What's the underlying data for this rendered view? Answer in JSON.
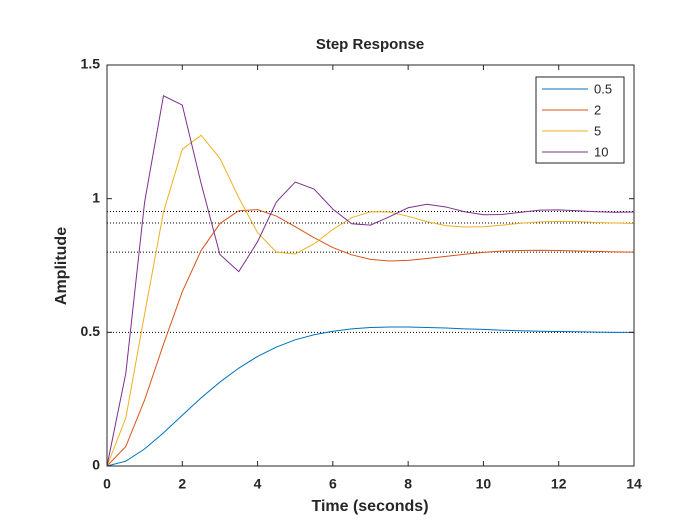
{
  "chart_data": {
    "type": "line",
    "title": "Step Response",
    "xlabel": "Time (seconds)",
    "ylabel": "Amplitude",
    "x": [
      0,
      0.5,
      1,
      1.5,
      2,
      2.5,
      3,
      3.5,
      4,
      4.5,
      5,
      5.5,
      6,
      6.5,
      7,
      7.5,
      8,
      8.5,
      9,
      9.5,
      10,
      10.5,
      11,
      11.5,
      12,
      12.5,
      13,
      13.5,
      14
    ],
    "xlim": [
      0,
      14
    ],
    "xticks": [
      0,
      2,
      4,
      6,
      8,
      10,
      12,
      14
    ],
    "ylim": [
      0,
      1.5
    ],
    "yticks": [
      0,
      0.5,
      1,
      1.5
    ],
    "legend": "upper right",
    "series": [
      {
        "name": "0.5",
        "color": "#0072BD",
        "final_value": 0.5,
        "values": [
          0,
          0.018,
          0.064,
          0.124,
          0.19,
          0.255,
          0.314,
          0.366,
          0.41,
          0.445,
          0.472,
          0.491,
          0.504,
          0.513,
          0.518,
          0.52,
          0.52,
          0.518,
          0.516,
          0.513,
          0.511,
          0.508,
          0.506,
          0.504,
          0.503,
          0.502,
          0.501,
          0.5,
          0.5
        ]
      },
      {
        "name": "2",
        "color": "#D95319",
        "final_value": 0.8,
        "values": [
          0,
          0.073,
          0.247,
          0.455,
          0.652,
          0.806,
          0.907,
          0.955,
          0.959,
          0.935,
          0.895,
          0.854,
          0.817,
          0.79,
          0.773,
          0.767,
          0.769,
          0.776,
          0.784,
          0.792,
          0.799,
          0.804,
          0.806,
          0.807,
          0.806,
          0.804,
          0.803,
          0.801,
          0.8
        ]
      },
      {
        "name": "5",
        "color": "#EDB120",
        "final_value": 0.909,
        "values": [
          0,
          0.18,
          0.569,
          0.95,
          1.185,
          1.237,
          1.151,
          1.004,
          0.873,
          0.8,
          0.793,
          0.831,
          0.885,
          0.929,
          0.951,
          0.95,
          0.934,
          0.914,
          0.899,
          0.894,
          0.895,
          0.901,
          0.908,
          0.913,
          0.915,
          0.914,
          0.911,
          0.909,
          0.907
        ]
      },
      {
        "name": "10",
        "color": "#7E2F8E",
        "final_value": 0.952,
        "values": [
          0,
          0.347,
          0.988,
          1.385,
          1.35,
          1.057,
          0.791,
          0.727,
          0.839,
          0.988,
          1.062,
          1.036,
          0.961,
          0.906,
          0.901,
          0.932,
          0.966,
          0.979,
          0.969,
          0.951,
          0.94,
          0.941,
          0.949,
          0.957,
          0.958,
          0.955,
          0.951,
          0.949,
          0.95
        ]
      }
    ]
  }
}
